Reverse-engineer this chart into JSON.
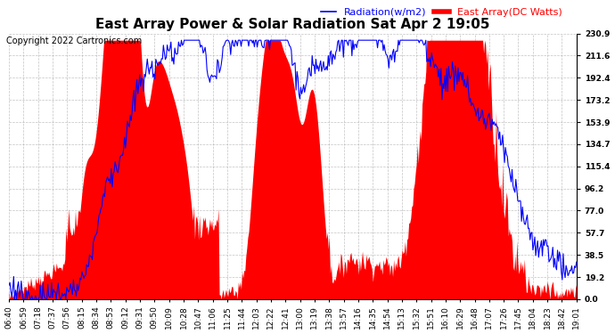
{
  "title": "East Array Power & Solar Radiation Sat Apr 2 19:05",
  "copyright": "Copyright 2022 Cartronics.com",
  "legend_radiation": "Radiation(w/m2)",
  "legend_east": "East Array(DC Watts)",
  "radiation_color": "blue",
  "east_color": "red",
  "ylabel_right_values": [
    230.9,
    211.6,
    192.4,
    173.2,
    153.9,
    134.7,
    115.4,
    96.2,
    77.0,
    57.7,
    38.5,
    19.2,
    0.0
  ],
  "ylim": [
    0.0,
    230.9
  ],
  "background_color": "#ffffff",
  "grid_color": "#aaaaaa",
  "x_labels": [
    "06:40",
    "06:59",
    "07:18",
    "07:37",
    "07:56",
    "08:15",
    "08:34",
    "08:53",
    "09:12",
    "09:31",
    "09:50",
    "10:09",
    "10:28",
    "10:47",
    "11:06",
    "11:25",
    "11:44",
    "12:03",
    "12:22",
    "12:41",
    "13:00",
    "13:19",
    "13:38",
    "13:57",
    "14:16",
    "14:35",
    "14:54",
    "15:13",
    "15:32",
    "15:51",
    "16:10",
    "16:29",
    "16:48",
    "17:07",
    "17:26",
    "17:45",
    "18:04",
    "18:23",
    "18:42",
    "19:01"
  ],
  "title_fontsize": 11,
  "copyright_fontsize": 7,
  "legend_fontsize": 8,
  "tick_fontsize": 6.5
}
